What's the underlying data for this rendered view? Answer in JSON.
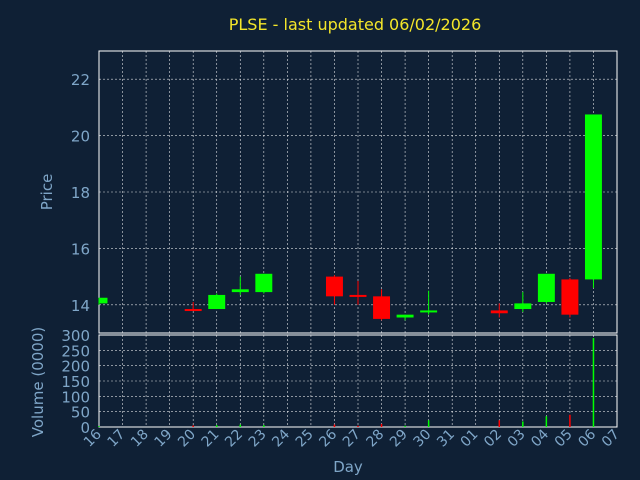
{
  "chart_data": [
    {
      "type": "candlestick",
      "title": "PLSE - last updated 06/02/2026",
      "ylabel": "Price",
      "ylim": [
        13,
        23
      ],
      "yticks": [
        14,
        16,
        18,
        20,
        22
      ],
      "grid": true,
      "colors": {
        "up": "#00ff00",
        "down": "#ff0000"
      },
      "categories": [
        "16",
        "17",
        "18",
        "19",
        "20",
        "21",
        "22",
        "23",
        "24",
        "25",
        "26",
        "27",
        "28",
        "29",
        "30",
        "31",
        "01",
        "02",
        "03",
        "04",
        "05",
        "06",
        "07"
      ],
      "candles": [
        {
          "x": "16",
          "open": 14.05,
          "high": 14.25,
          "low": 14.0,
          "close": 14.25
        },
        {
          "x": "20",
          "open": 13.85,
          "high": 14.1,
          "low": 13.8,
          "close": 13.8
        },
        {
          "x": "21",
          "open": 13.85,
          "high": 14.4,
          "low": 13.85,
          "close": 14.35
        },
        {
          "x": "22",
          "open": 14.45,
          "high": 15.0,
          "low": 14.35,
          "close": 14.55
        },
        {
          "x": "23",
          "open": 14.45,
          "high": 15.1,
          "low": 14.4,
          "close": 15.1
        },
        {
          "x": "26",
          "open": 15.0,
          "high": 15.05,
          "low": 14.0,
          "close": 14.3
        },
        {
          "x": "27",
          "open": 14.35,
          "high": 14.85,
          "low": 14.0,
          "close": 14.3
        },
        {
          "x": "28",
          "open": 14.3,
          "high": 14.55,
          "low": 13.45,
          "close": 13.5
        },
        {
          "x": "29",
          "open": 13.55,
          "high": 13.65,
          "low": 13.45,
          "close": 13.65
        },
        {
          "x": "30",
          "open": 13.75,
          "high": 14.5,
          "low": 13.65,
          "close": 13.8
        },
        {
          "x": "02",
          "open": 13.8,
          "high": 14.05,
          "low": 13.55,
          "close": 13.7
        },
        {
          "x": "03",
          "open": 13.85,
          "high": 14.45,
          "low": 13.75,
          "close": 14.05
        },
        {
          "x": "04",
          "open": 14.1,
          "high": 15.1,
          "low": 14.05,
          "close": 15.1
        },
        {
          "x": "05",
          "open": 14.9,
          "high": 14.95,
          "low": 13.55,
          "close": 13.65
        },
        {
          "x": "06",
          "open": 14.9,
          "high": 20.75,
          "low": 14.6,
          "close": 20.75
        }
      ]
    },
    {
      "type": "bar",
      "ylabel": "Volume (0000)",
      "xlabel": "Day",
      "ylim": [
        0,
        300
      ],
      "yticks": [
        0,
        50,
        100,
        150,
        200,
        250,
        300
      ],
      "grid": true,
      "categories": [
        "16",
        "17",
        "18",
        "19",
        "20",
        "21",
        "22",
        "23",
        "24",
        "25",
        "26",
        "27",
        "28",
        "29",
        "30",
        "31",
        "01",
        "02",
        "03",
        "04",
        "05",
        "06",
        "07"
      ],
      "bars": [
        {
          "x": "16",
          "value": 3,
          "color": "#00ff00"
        },
        {
          "x": "20",
          "value": 5,
          "color": "#ff0000"
        },
        {
          "x": "21",
          "value": 6,
          "color": "#00ff00"
        },
        {
          "x": "22",
          "value": 8,
          "color": "#00ff00"
        },
        {
          "x": "23",
          "value": 6,
          "color": "#00ff00"
        },
        {
          "x": "26",
          "value": 8,
          "color": "#ff0000"
        },
        {
          "x": "27",
          "value": 4,
          "color": "#ff0000"
        },
        {
          "x": "28",
          "value": 10,
          "color": "#ff0000"
        },
        {
          "x": "29",
          "value": 4,
          "color": "#00ff00"
        },
        {
          "x": "30",
          "value": 22,
          "color": "#00ff00"
        },
        {
          "x": "02",
          "value": 22,
          "color": "#ff0000"
        },
        {
          "x": "03",
          "value": 18,
          "color": "#00ff00"
        },
        {
          "x": "04",
          "value": 35,
          "color": "#00ff00"
        },
        {
          "x": "05",
          "value": 40,
          "color": "#ff0000"
        },
        {
          "x": "06",
          "value": 290,
          "color": "#00ff00"
        }
      ]
    }
  ]
}
